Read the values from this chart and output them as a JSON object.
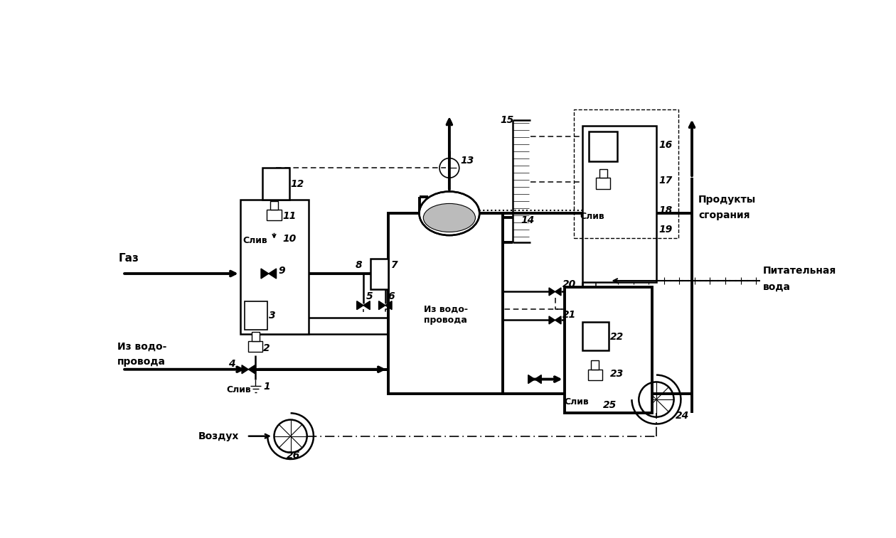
{
  "bg_color": "#ffffff",
  "lc": "#000000",
  "fig_w": 12.6,
  "fig_h": 7.57,
  "xlim": [
    0,
    12.6
  ],
  "ylim": [
    0,
    7.57
  ],
  "labels": {
    "gas": "Газ",
    "water_pipe": "Из водо-\nпровода",
    "air": "Воздух",
    "feed_water_1": "Питательная",
    "feed_water_2": "вода",
    "combustion_1": "Продукты",
    "combustion_2": "сгорания",
    "boiler_label": "Из водо-\nпровода",
    "drain": "Слив"
  }
}
